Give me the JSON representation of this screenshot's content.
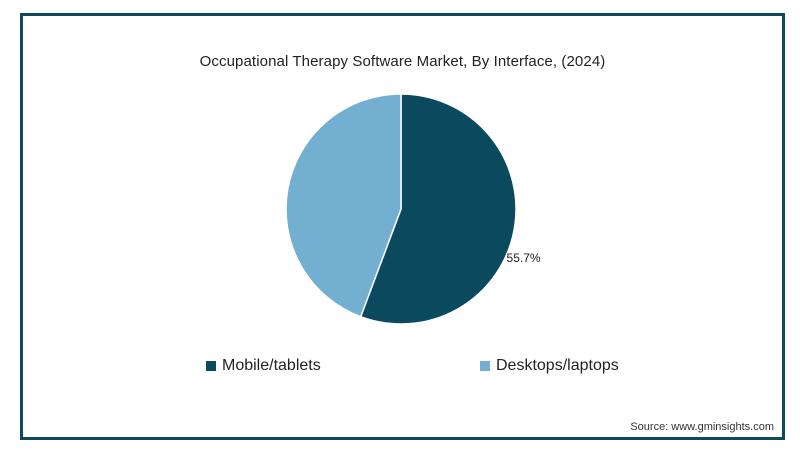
{
  "chart_data": {
    "type": "pie",
    "title": "Occupational Therapy Software Market, By Interface,  (2024)",
    "categories": [
      "Mobile/tablets",
      "Desktops/laptops"
    ],
    "values": [
      55.7,
      44.3
    ],
    "colors": [
      "#0b4a5e",
      "#73afd0"
    ],
    "data_labels": [
      "55.7%",
      ""
    ],
    "legend_position": "bottom"
  },
  "source": "Source: www.gminsights.com"
}
